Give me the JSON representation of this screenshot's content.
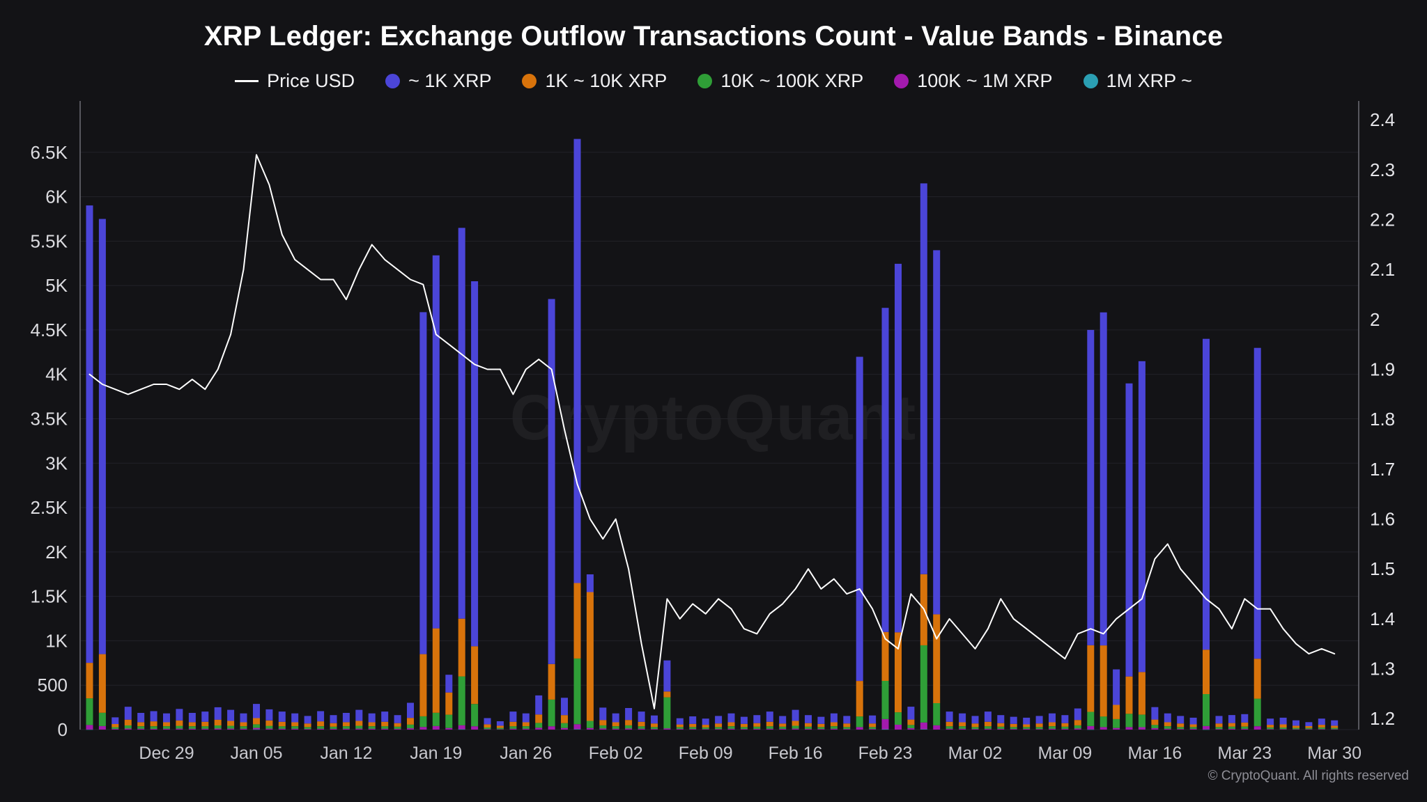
{
  "title": "XRP Ledger: Exchange Outflow Transactions Count - Value Bands - Binance",
  "watermark": "CryptoQuant",
  "footer": "© CryptoQuant. All rights reserved",
  "legend": {
    "price": {
      "label": "Price USD",
      "color": "#ffffff"
    },
    "bands": [
      {
        "label": "~ 1K XRP",
        "color": "#4B45D8"
      },
      {
        "label": "1K ~ 10K XRP",
        "color": "#D8730B"
      },
      {
        "label": "10K ~ 100K XRP",
        "color": "#2F9E37"
      },
      {
        "label": "100K ~ 1M XRP",
        "color": "#A31AAE"
      },
      {
        "label": "1M XRP ~",
        "color": "#2B9FB3"
      }
    ]
  },
  "chart_data": {
    "type": "bar+line",
    "title": "XRP Ledger: Exchange Outflow Transactions Count - Value Bands - Binance",
    "note": "Stacked daily bars (transactions count by value band) with XRP price overlay; stacking bottom-to-top is reverse of series order (teal bottom, blue top)",
    "x": [
      "Dec 23",
      "Dec 24",
      "Dec 25",
      "Dec 26",
      "Dec 27",
      "Dec 28",
      "Dec 29",
      "Dec 30",
      "Dec 31",
      "Jan 01",
      "Jan 02",
      "Jan 03",
      "Jan 04",
      "Jan 05",
      "Jan 06",
      "Jan 07",
      "Jan 08",
      "Jan 09",
      "Jan 10",
      "Jan 11",
      "Jan 12",
      "Jan 13",
      "Jan 14",
      "Jan 15",
      "Jan 16",
      "Jan 17",
      "Jan 18",
      "Jan 19",
      "Jan 20",
      "Jan 21",
      "Jan 22",
      "Jan 23",
      "Jan 24",
      "Jan 25",
      "Jan 26",
      "Jan 27",
      "Jan 28",
      "Jan 29",
      "Jan 30",
      "Jan 31",
      "Feb 01",
      "Feb 02",
      "Feb 03",
      "Feb 04",
      "Feb 05",
      "Feb 06",
      "Feb 07",
      "Feb 08",
      "Feb 09",
      "Feb 10",
      "Feb 11",
      "Feb 12",
      "Feb 13",
      "Feb 14",
      "Feb 15",
      "Feb 16",
      "Feb 17",
      "Feb 18",
      "Feb 19",
      "Feb 20",
      "Feb 21",
      "Feb 22",
      "Feb 23",
      "Feb 24",
      "Feb 25",
      "Feb 26",
      "Feb 27",
      "Feb 28",
      "Mar 01",
      "Mar 02",
      "Mar 03",
      "Mar 04",
      "Mar 05",
      "Mar 06",
      "Mar 07",
      "Mar 08",
      "Mar 09",
      "Mar 10",
      "Mar 11",
      "Mar 12",
      "Mar 13",
      "Mar 14",
      "Mar 15",
      "Mar 16",
      "Mar 17",
      "Mar 18",
      "Mar 19",
      "Mar 20",
      "Mar 21",
      "Mar 22",
      "Mar 23",
      "Mar 24",
      "Mar 25",
      "Mar 26",
      "Mar 27",
      "Mar 28",
      "Mar 29",
      "Mar 30"
    ],
    "x_tick_labels": [
      "Dec 29",
      "Jan 05",
      "Jan 12",
      "Jan 19",
      "Jan 26",
      "Feb 02",
      "Feb 09",
      "Feb 16",
      "Feb 23",
      "Mar 02",
      "Mar 09",
      "Mar 16",
      "Mar 23",
      "Mar 30"
    ],
    "left_axis": {
      "min": 0,
      "max": 7000,
      "ticks": [
        {
          "value": 0,
          "label": "0"
        },
        {
          "value": 500,
          "label": "500"
        },
        {
          "value": 1000,
          "label": "1K"
        },
        {
          "value": 1500,
          "label": "1.5K"
        },
        {
          "value": 2000,
          "label": "2K"
        },
        {
          "value": 2500,
          "label": "2.5K"
        },
        {
          "value": 3000,
          "label": "3K"
        },
        {
          "value": 3500,
          "label": "3.5K"
        },
        {
          "value": 4000,
          "label": "4K"
        },
        {
          "value": 4500,
          "label": "4.5K"
        },
        {
          "value": 5000,
          "label": "5K"
        },
        {
          "value": 5500,
          "label": "5.5K"
        },
        {
          "value": 6000,
          "label": "6K"
        },
        {
          "value": 6500,
          "label": "6.5K"
        }
      ]
    },
    "right_axis": {
      "min": 1.178,
      "max": 2.424,
      "ticks": [
        {
          "value": 1.2,
          "label": "1.2"
        },
        {
          "value": 1.3,
          "label": "1.3"
        },
        {
          "value": 1.4,
          "label": "1.4"
        },
        {
          "value": 1.5,
          "label": "1.5"
        },
        {
          "value": 1.6,
          "label": "1.6"
        },
        {
          "value": 1.7,
          "label": "1.7"
        },
        {
          "value": 1.8,
          "label": "1.8"
        },
        {
          "value": 1.9,
          "label": "1.9"
        },
        {
          "value": 2.0,
          "label": "2"
        },
        {
          "value": 2.1,
          "label": "2.1"
        },
        {
          "value": 2.2,
          "label": "2.2"
        },
        {
          "value": 2.3,
          "label": "2.3"
        },
        {
          "value": 2.4,
          "label": "2.4"
        }
      ]
    },
    "series": [
      {
        "name": "~ 1K XRP",
        "color": "#4B45D8",
        "values": [
          5150,
          4900,
          75,
          145,
          105,
          115,
          100,
          130,
          105,
          115,
          140,
          125,
          100,
          160,
          125,
          115,
          100,
          85,
          115,
          90,
          105,
          125,
          100,
          115,
          90,
          170,
          3850,
          4200,
          200,
          4400,
          4110,
          70,
          50,
          115,
          100,
          215,
          4110,
          195,
          5000,
          200,
          140,
          100,
          135,
          115,
          90,
          350,
          70,
          85,
          70,
          85,
          100,
          80,
          90,
          115,
          85,
          125,
          90,
          80,
          100,
          85,
          3650,
          90,
          3650,
          4150,
          145,
          4400,
          4100,
          115,
          100,
          85,
          115,
          90,
          80,
          75,
          85,
          100,
          90,
          130,
          3550,
          3750,
          400,
          3300,
          3500,
          140,
          100,
          85,
          75,
          3500,
          85,
          90,
          95,
          3500,
          70,
          75,
          60,
          45,
          70,
          60
        ]
      },
      {
        "name": "1K ~ 10K XRP",
        "color": "#D8730B",
        "values": [
          400,
          660,
          35,
          65,
          45,
          55,
          45,
          60,
          45,
          50,
          65,
          55,
          45,
          70,
          60,
          50,
          45,
          40,
          55,
          40,
          45,
          55,
          45,
          50,
          40,
          75,
          700,
          950,
          250,
          650,
          650,
          35,
          25,
          50,
          45,
          95,
          400,
          90,
          850,
          1450,
          60,
          45,
          60,
          50,
          40,
          65,
          30,
          35,
          30,
          40,
          45,
          35,
          40,
          50,
          35,
          55,
          40,
          35,
          45,
          40,
          400,
          40,
          550,
          900,
          60,
          800,
          1000,
          50,
          45,
          40,
          50,
          40,
          35,
          30,
          40,
          45,
          40,
          60,
          750,
          800,
          160,
          420,
          480,
          60,
          45,
          40,
          30,
          500,
          40,
          40,
          45,
          450,
          30,
          35,
          25,
          20,
          30,
          25
        ]
      },
      {
        "name": "10K ~ 100K XRP",
        "color": "#2F9E37",
        "values": [
          300,
          150,
          20,
          35,
          28,
          30,
          28,
          32,
          28,
          28,
          35,
          32,
          28,
          40,
          32,
          28,
          28,
          22,
          28,
          24,
          28,
          32,
          28,
          28,
          24,
          42,
          120,
          150,
          150,
          550,
          250,
          18,
          14,
          28,
          28,
          55,
          300,
          55,
          740,
          80,
          35,
          28,
          35,
          28,
          22,
          350,
          20,
          22,
          18,
          22,
          28,
          22,
          24,
          28,
          24,
          32,
          24,
          22,
          28,
          22,
          120,
          22,
          430,
          140,
          38,
          870,
          250,
          28,
          28,
          22,
          28,
          24,
          22,
          20,
          22,
          28,
          24,
          35,
          160,
          120,
          100,
          150,
          140,
          38,
          28,
          22,
          20,
          360,
          22,
          25,
          25,
          310,
          18,
          18,
          14,
          13,
          18,
          14
        ]
      },
      {
        "name": "100K ~ 1M XRP",
        "color": "#A31AAE",
        "values": [
          50,
          40,
          8,
          12,
          10,
          8,
          10,
          11,
          10,
          10,
          12,
          11,
          10,
          16,
          11,
          10,
          10,
          7,
          10,
          9,
          10,
          11,
          10,
          10,
          9,
          15,
          30,
          40,
          18,
          45,
          38,
          6,
          5,
          10,
          10,
          20,
          38,
          18,
          55,
          18,
          13,
          10,
          13,
          10,
          7,
          14,
          8,
          7,
          6,
          7,
          10,
          7,
          9,
          10,
          9,
          11,
          9,
          7,
          10,
          7,
          28,
          7,
          115,
          55,
          15,
          75,
          48,
          10,
          10,
          7,
          10,
          9,
          7,
          9,
          7,
          10,
          9,
          13,
          38,
          28,
          18,
          28,
          28,
          15,
          10,
          7,
          9,
          38,
          7,
          9,
          9,
          38,
          6,
          6,
          5,
          6,
          6,
          5
        ]
      },
      {
        "name": "1M XRP ~",
        "color": "#2B9FB3",
        "values": [
          2,
          0,
          0,
          0,
          0,
          0,
          0,
          0,
          0,
          0,
          0,
          0,
          0,
          3,
          0,
          0,
          0,
          0,
          0,
          0,
          0,
          0,
          0,
          0,
          0,
          0,
          0,
          0,
          0,
          4,
          0,
          0,
          0,
          0,
          0,
          0,
          0,
          0,
          5,
          0,
          0,
          0,
          0,
          0,
          0,
          0,
          0,
          0,
          0,
          0,
          0,
          0,
          0,
          0,
          0,
          0,
          0,
          0,
          0,
          0,
          0,
          0,
          4,
          0,
          0,
          5,
          0,
          0,
          0,
          0,
          0,
          0,
          0,
          0,
          0,
          0,
          0,
          0,
          2,
          0,
          0,
          0,
          0,
          0,
          0,
          0,
          0,
          2,
          0,
          0,
          0,
          0,
          0,
          0,
          0,
          0,
          0,
          0
        ]
      }
    ],
    "price_line": {
      "name": "Price USD",
      "color": "#ffffff",
      "values": [
        1.89,
        1.87,
        1.86,
        1.85,
        1.86,
        1.87,
        1.87,
        1.86,
        1.88,
        1.86,
        1.9,
        1.97,
        2.1,
        2.33,
        2.27,
        2.17,
        2.12,
        2.1,
        2.08,
        2.08,
        2.04,
        2.1,
        2.15,
        2.12,
        2.1,
        2.08,
        2.07,
        1.97,
        1.95,
        1.93,
        1.91,
        1.9,
        1.9,
        1.85,
        1.9,
        1.92,
        1.9,
        1.78,
        1.67,
        1.6,
        1.56,
        1.6,
        1.5,
        1.35,
        1.22,
        1.44,
        1.4,
        1.43,
        1.41,
        1.44,
        1.42,
        1.38,
        1.37,
        1.41,
        1.43,
        1.46,
        1.5,
        1.46,
        1.48,
        1.45,
        1.46,
        1.42,
        1.36,
        1.34,
        1.45,
        1.42,
        1.36,
        1.4,
        1.37,
        1.34,
        1.38,
        1.44,
        1.4,
        1.38,
        1.36,
        1.34,
        1.32,
        1.37,
        1.38,
        1.37,
        1.4,
        1.42,
        1.44,
        1.52,
        1.55,
        1.5,
        1.47,
        1.44,
        1.42,
        1.38,
        1.44,
        1.42,
        1.42,
        1.38,
        1.35,
        1.33,
        1.34,
        1.33
      ]
    },
    "grid": true,
    "legend_position": "top"
  }
}
